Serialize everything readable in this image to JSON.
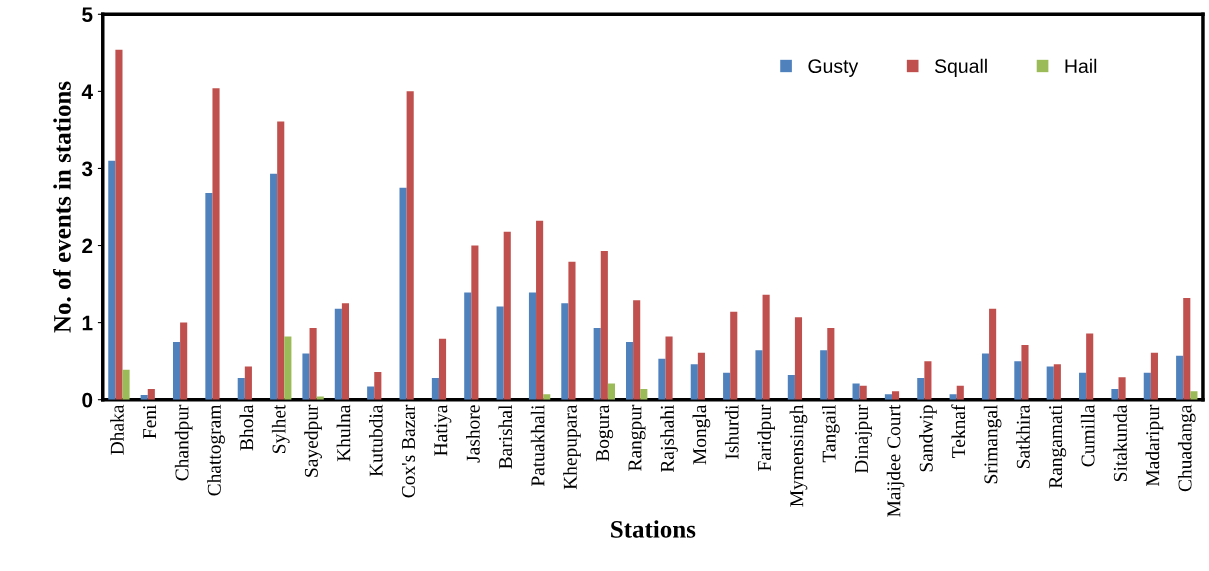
{
  "chart_data": {
    "type": "bar",
    "xlabel": "Stations",
    "ylabel": "No. of events in stations",
    "categories": [
      "Dhaka",
      "Feni",
      "Chandpur",
      "Chattogram",
      "Bhola",
      "Sylhet",
      "Sayedpur",
      "Khulna",
      "Kutubdia",
      "Cox's Bazar",
      "Hatiya",
      "Jashore",
      "Barishal",
      "Patuakhali",
      "Khepupara",
      "Bogura",
      "Rangpur",
      "Rajshahi",
      "Mongla",
      "Ishurdi",
      "Faridpur",
      "Mymensingh",
      "Tangail",
      "Dinajpur",
      "Maijdee Court",
      "Sandwip",
      "Teknaf",
      "Srimangal",
      "Satkhira",
      "Rangamati",
      "Cumilla",
      "Sitakunda",
      "Madaripur",
      "Chuadanga"
    ],
    "series": [
      {
        "name": "Gusty",
        "color": "#4f81bd",
        "values": [
          3.1,
          0.06,
          0.75,
          2.68,
          0.28,
          2.93,
          0.6,
          1.18,
          0.17,
          2.75,
          0.28,
          1.39,
          1.21,
          1.39,
          1.25,
          0.93,
          0.75,
          0.53,
          0.46,
          0.35,
          0.64,
          0.32,
          0.64,
          0.21,
          0.07,
          0.28,
          0.07,
          0.6,
          0.5,
          0.43,
          0.35,
          0.14,
          0.35,
          0.57
        ]
      },
      {
        "name": "Squall",
        "color": "#c0504d",
        "values": [
          4.54,
          0.14,
          1.0,
          4.04,
          0.43,
          3.61,
          0.93,
          1.25,
          0.36,
          4.0,
          0.79,
          2.0,
          2.18,
          2.32,
          1.79,
          1.93,
          1.29,
          0.82,
          0.61,
          1.14,
          1.36,
          1.07,
          0.93,
          0.18,
          0.11,
          0.5,
          0.18,
          1.18,
          0.71,
          0.46,
          0.86,
          0.29,
          0.61,
          1.32
        ]
      },
      {
        "name": "Hail",
        "color": "#9bbb59",
        "values": [
          0.39,
          0,
          0,
          0,
          0,
          0.82,
          0.04,
          0,
          0,
          0,
          0,
          0,
          0,
          0.07,
          0,
          0.21,
          0.14,
          0,
          0,
          0,
          0,
          0,
          0,
          0,
          0,
          0,
          0,
          0,
          0,
          0,
          0,
          0,
          0,
          0.11
        ]
      }
    ],
    "ylim": [
      0,
      5
    ],
    "yticks": [
      0,
      1,
      2,
      3,
      4,
      5
    ],
    "grid": false,
    "legend": "top right"
  }
}
